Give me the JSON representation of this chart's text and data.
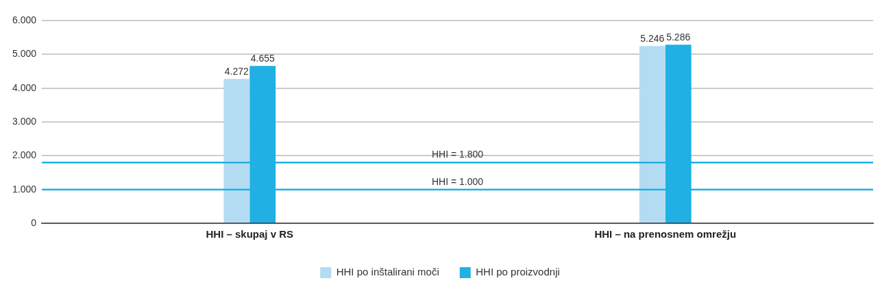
{
  "chart_data": {
    "type": "bar",
    "categories": [
      "HHI – skupaj v RS",
      "HHI – na prenosnem omrežju"
    ],
    "series": [
      {
        "name": "HHI po inštalirani moči",
        "color": "#b3dcf3",
        "values": [
          4272,
          5246
        ],
        "value_labels": [
          "4.272",
          "5.246"
        ]
      },
      {
        "name": "HHI po proizvodnji",
        "color": "#20b0e3",
        "values": [
          4655,
          5286
        ],
        "value_labels": [
          "4.655",
          "5.286"
        ]
      }
    ],
    "ylim": [
      0,
      6000
    ],
    "yticks": [
      {
        "value": 0,
        "label": "0"
      },
      {
        "value": 1000,
        "label": "1.000"
      },
      {
        "value": 2000,
        "label": "2.000"
      },
      {
        "value": 3000,
        "label": "3.000"
      },
      {
        "value": 4000,
        "label": "4.000"
      },
      {
        "value": 5000,
        "label": "5.000"
      },
      {
        "value": 6000,
        "label": "6.000"
      }
    ],
    "ref_lines": [
      {
        "axis": "y",
        "value": 1800,
        "label": "HHI = 1.800",
        "color": "#20b0e3"
      },
      {
        "axis": "y",
        "value": 1000,
        "label": "HHI = 1.000",
        "color": "#20b0e3"
      }
    ],
    "grid": "y",
    "legend": "bottom"
  }
}
